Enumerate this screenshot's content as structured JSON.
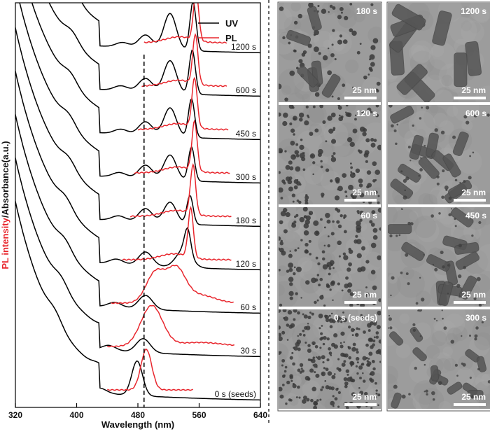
{
  "chart_data": {
    "type": "line",
    "xlabel": "Wavelength (nm)",
    "ylabel_red": "PL intensity",
    "ylabel_sep": "/",
    "ylabel_black": "Absorbance(a.u.)",
    "xticks": [
      "320",
      "400",
      "480",
      "560",
      "640"
    ],
    "xlim": [
      320,
      640
    ],
    "reference_line_nm": 488,
    "legend": {
      "position": "top-right",
      "entries": [
        {
          "name": "UV",
          "color": "#000000"
        },
        {
          "name": "PL",
          "color": "#e8262d"
        }
      ]
    },
    "spectra": [
      {
        "time": "0 s (seeds)",
        "uv_peaks": [
          372,
          430,
          479
        ],
        "uv_peak_count": 3,
        "pl_peak": 491,
        "pl_start": 440,
        "pl_end": 552
      },
      {
        "time": "30 s",
        "uv_peaks": [
          380,
          442,
          487
        ],
        "pl_peak": 498,
        "pl_start": 440,
        "pl_end": 606
      },
      {
        "time": "60 s",
        "uv_peaks": [
          385,
          450,
          490
        ],
        "pl_peak": 510,
        "pl_start": 445,
        "pl_end": 605
      },
      {
        "time": "120 s",
        "uv_peaks": [
          386,
          452,
          490,
          540
        ],
        "pl_peak": 549,
        "pl_start": 460,
        "pl_end": 602
      },
      {
        "time": "180 s",
        "uv_peaks": [
          390,
          455,
          490,
          522
        ],
        "pl_peak": 552,
        "pl_start": 470,
        "pl_end": 602
      },
      {
        "time": "300 s",
        "uv_peaks": [
          390,
          456,
          490,
          522
        ],
        "pl_peak": 554,
        "pl_start": 475,
        "pl_end": 600
      },
      {
        "time": "450 s",
        "uv_peaks": [
          392,
          458,
          490,
          522
        ],
        "pl_peak": 554,
        "pl_start": 480,
        "pl_end": 598
      },
      {
        "time": "600 s",
        "uv_peaks": [
          394,
          458,
          490,
          522
        ],
        "pl_peak": 555,
        "pl_start": 485,
        "pl_end": 596
      },
      {
        "time": "1200 s",
        "uv_peaks": [
          396,
          460,
          490,
          522
        ],
        "pl_peak": 556,
        "pl_start": 488,
        "pl_end": 596
      }
    ]
  },
  "micrographs": {
    "scale_bar_label": "25 nm",
    "left_column": [
      {
        "time": "180 s",
        "type": "mixed"
      },
      {
        "time": "120 s",
        "type": "dots"
      },
      {
        "time": "60 s",
        "type": "dots"
      },
      {
        "time": "0 s (seeds)",
        "type": "seeds"
      }
    ],
    "right_column": [
      {
        "time": "1200 s",
        "type": "rods-large"
      },
      {
        "time": "600 s",
        "type": "rods"
      },
      {
        "time": "450 s",
        "type": "rods"
      },
      {
        "time": "300 s",
        "type": "rods-small"
      }
    ]
  }
}
